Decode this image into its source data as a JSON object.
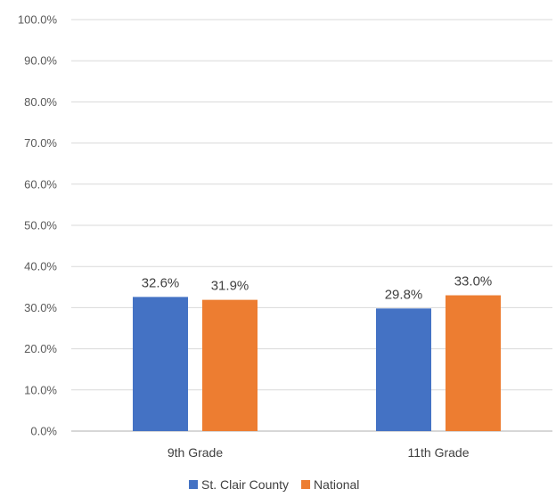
{
  "chart_data": {
    "type": "bar",
    "title": "",
    "xlabel": "",
    "ylabel": "",
    "categories": [
      "9th Grade",
      "11th Grade"
    ],
    "series": [
      {
        "name": "St. Clair County",
        "values": [
          32.6,
          29.8
        ],
        "color": "#4472C4"
      },
      {
        "name": "National",
        "values": [
          31.9,
          33.0
        ],
        "color": "#ED7D31"
      }
    ],
    "ylim": [
      0,
      100
    ],
    "yticks": [
      0,
      10,
      20,
      30,
      40,
      50,
      60,
      70,
      80,
      90,
      100
    ],
    "ytick_labels": [
      "0.0%",
      "10.0%",
      "20.0%",
      "30.0%",
      "40.0%",
      "50.0%",
      "60.0%",
      "70.0%",
      "80.0%",
      "90.0%",
      "100.0%"
    ],
    "data_labels": [
      [
        "32.6%",
        "29.8%"
      ],
      [
        "31.9%",
        "33.0%"
      ]
    ],
    "grid": true,
    "legend_position": "bottom"
  }
}
